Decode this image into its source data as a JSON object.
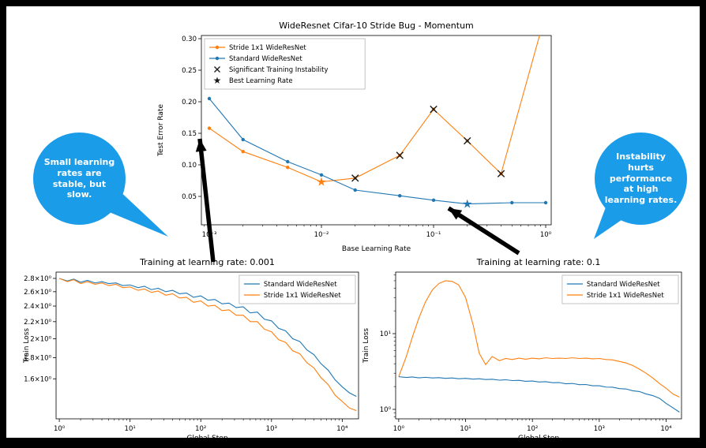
{
  "colors": {
    "series_orange": "#ff7f0e",
    "series_blue": "#1f77b4",
    "marker_black": "#1a1a1a",
    "bubble_blue": "#1b9ce9",
    "arrow_black": "#000000"
  },
  "annotations": {
    "left_bubble": "Small learning rates are stable, but slow.",
    "right_bubble": "Instability hurts performance at high learning rates."
  },
  "chart_data": [
    {
      "id": "lr-sweep",
      "type": "line",
      "title": "WideResnet Cifar-10 Stride Bug - Momentum",
      "xlabel": "Base Learning Rate",
      "ylabel": "Test Error Rate",
      "xscale": "log",
      "yscale": "linear",
      "xlim": [
        0.00085,
        1.12
      ],
      "ylim": [
        0.005,
        0.305
      ],
      "xticks": {
        "values": [
          0.001,
          0.01,
          0.1,
          1
        ],
        "labels": [
          "10⁻³",
          "10⁻²",
          "10⁻¹",
          "10⁰"
        ]
      },
      "yticks": {
        "values": [
          0.05,
          0.1,
          0.15,
          0.2,
          0.25,
          0.3
        ],
        "labels": [
          "0.05",
          "0.10",
          "0.15",
          "0.20",
          "0.25",
          "0.30"
        ]
      },
      "series": [
        {
          "name": "Stride 1x1 WideResNet",
          "color": "#ff7f0e",
          "marker": "dot",
          "x": [
            0.001,
            0.002,
            0.005,
            0.01,
            0.02,
            0.05,
            0.1,
            0.2,
            0.4,
            1.0
          ],
          "y": [
            0.158,
            0.121,
            0.096,
            0.073,
            0.079,
            0.115,
            0.188,
            0.138,
            0.086,
            0.34
          ]
        },
        {
          "name": "Standard WideResNet",
          "color": "#1f77b4",
          "marker": "dot",
          "x": [
            0.001,
            0.002,
            0.005,
            0.01,
            0.02,
            0.05,
            0.1,
            0.2,
            0.5,
            1.0
          ],
          "y": [
            0.205,
            0.14,
            0.105,
            0.084,
            0.06,
            0.051,
            0.044,
            0.038,
            0.04,
            0.04
          ]
        }
      ],
      "markers": [
        {
          "type": "x",
          "label": "Significant Training Instability",
          "color": "#1a1a1a",
          "points": [
            [
              0.02,
              0.079
            ],
            [
              0.05,
              0.115
            ],
            [
              0.1,
              0.188
            ],
            [
              0.2,
              0.138
            ],
            [
              0.4,
              0.086
            ]
          ]
        },
        {
          "type": "star",
          "label": "Best Learning Rate",
          "color": "#ff7f0e",
          "points": [
            [
              0.01,
              0.073
            ]
          ]
        },
        {
          "type": "star",
          "label": "Best Learning Rate",
          "color": "#1f77b4",
          "points": [
            [
              0.2,
              0.038
            ]
          ]
        }
      ],
      "legend": {
        "position": "upper-left",
        "entries": [
          {
            "label": "Stride 1x1 WideResNet",
            "type": "line-dot",
            "color": "#ff7f0e"
          },
          {
            "label": "Standard WideResNet",
            "type": "line-dot",
            "color": "#1f77b4"
          },
          {
            "label": "Significant Training Instability",
            "type": "x",
            "color": "#1a1a1a"
          },
          {
            "label": "Best Learning Rate",
            "type": "star",
            "color": "#1a1a1a"
          }
        ]
      }
    },
    {
      "id": "train-lr-0.001",
      "type": "line",
      "title": "Training at learning rate: 0.001",
      "xlabel": "Global Step",
      "ylabel": "Train Loss",
      "xscale": "log",
      "yscale": "log",
      "xlim": [
        0.9,
        17000
      ],
      "ylim": [
        1.28,
        2.9
      ],
      "xticks": {
        "values": [
          1,
          10,
          100,
          1000,
          10000
        ],
        "labels": [
          "10⁰",
          "10¹",
          "10²",
          "10³",
          "10⁴"
        ]
      },
      "yticks": {
        "values": [
          1.6,
          1.8,
          2.0,
          2.2,
          2.4,
          2.6,
          2.8
        ],
        "labels": [
          "1.6×10⁰",
          "1.8×10⁰",
          "2×10⁰",
          "2.2×10⁰",
          "2.4×10⁰",
          "2.6×10⁰",
          "2.8×10⁰"
        ]
      },
      "yminor": false,
      "series": [
        {
          "name": "Standard WideResNet",
          "color": "#1f77b4",
          "marker": "none",
          "x": [
            1,
            1.3,
            1.6,
            2,
            2.5,
            3.2,
            4,
            5,
            6.3,
            7.9,
            10,
            13,
            16,
            20,
            25,
            32,
            40,
            50,
            63,
            79,
            100,
            126,
            158,
            200,
            251,
            316,
            398,
            501,
            631,
            794,
            1000,
            1259,
            1585,
            1995,
            2512,
            3162,
            3981,
            5012,
            6310,
            7943,
            10000,
            12589,
            15849
          ],
          "y": [
            2.8,
            2.76,
            2.79,
            2.74,
            2.77,
            2.73,
            2.75,
            2.72,
            2.73,
            2.69,
            2.7,
            2.66,
            2.68,
            2.63,
            2.65,
            2.6,
            2.62,
            2.57,
            2.58,
            2.52,
            2.54,
            2.48,
            2.49,
            2.43,
            2.44,
            2.38,
            2.39,
            2.31,
            2.32,
            2.23,
            2.21,
            2.12,
            2.09,
            2.0,
            1.97,
            1.88,
            1.83,
            1.74,
            1.68,
            1.59,
            1.53,
            1.48,
            1.45
          ]
        },
        {
          "name": "Stride 1x1 WideResNet",
          "color": "#ff7f0e",
          "marker": "none",
          "x": [
            1,
            1.3,
            1.6,
            2,
            2.5,
            3.2,
            4,
            5,
            6.3,
            7.9,
            10,
            13,
            16,
            20,
            25,
            32,
            40,
            50,
            63,
            79,
            100,
            126,
            158,
            200,
            251,
            316,
            398,
            501,
            631,
            794,
            1000,
            1259,
            1585,
            1995,
            2512,
            3162,
            3981,
            5012,
            6310,
            7943,
            10000,
            12589,
            15849
          ],
          "y": [
            2.8,
            2.75,
            2.78,
            2.72,
            2.75,
            2.71,
            2.73,
            2.69,
            2.71,
            2.66,
            2.67,
            2.62,
            2.64,
            2.59,
            2.61,
            2.55,
            2.57,
            2.51,
            2.52,
            2.45,
            2.47,
            2.4,
            2.41,
            2.34,
            2.35,
            2.28,
            2.28,
            2.2,
            2.2,
            2.11,
            2.08,
            1.99,
            1.96,
            1.87,
            1.84,
            1.75,
            1.7,
            1.61,
            1.55,
            1.46,
            1.41,
            1.36,
            1.34
          ]
        }
      ],
      "legend": {
        "position": "upper-right",
        "entries": [
          {
            "label": "Standard WideResNet",
            "type": "line",
            "color": "#1f77b4"
          },
          {
            "label": "Stride 1x1 WideResNet",
            "type": "line",
            "color": "#ff7f0e"
          }
        ]
      }
    },
    {
      "id": "train-lr-0.1",
      "type": "line",
      "title": "Training at learning rate: 0.1",
      "xlabel": "Global Step",
      "ylabel": "Train Loss",
      "xscale": "log",
      "yscale": "log",
      "xlim": [
        0.9,
        17000
      ],
      "ylim": [
        0.75,
        65
      ],
      "xticks": {
        "values": [
          1,
          10,
          100,
          1000,
          10000
        ],
        "labels": [
          "10⁰",
          "10¹",
          "10²",
          "10³",
          "10⁴"
        ]
      },
      "yticks": {
        "values": [
          1,
          10
        ],
        "labels": [
          "10⁰",
          "10¹"
        ]
      },
      "yminor": true,
      "series": [
        {
          "name": "Standard WideResNet",
          "color": "#1f77b4",
          "marker": "none",
          "x": [
            1,
            1.3,
            1.6,
            2,
            2.5,
            3.2,
            4,
            5,
            6.3,
            7.9,
            10,
            13,
            16,
            20,
            25,
            32,
            40,
            50,
            63,
            79,
            100,
            126,
            158,
            200,
            251,
            316,
            398,
            501,
            631,
            794,
            1000,
            1259,
            1585,
            1995,
            2512,
            3162,
            3981,
            5012,
            6310,
            7943,
            10000,
            12589,
            15849
          ],
          "y": [
            2.7,
            2.64,
            2.68,
            2.61,
            2.65,
            2.6,
            2.62,
            2.57,
            2.6,
            2.54,
            2.57,
            2.51,
            2.54,
            2.48,
            2.5,
            2.43,
            2.46,
            2.4,
            2.42,
            2.35,
            2.37,
            2.3,
            2.32,
            2.25,
            2.26,
            2.18,
            2.2,
            2.12,
            2.13,
            2.05,
            2.05,
            1.97,
            1.96,
            1.88,
            1.86,
            1.76,
            1.72,
            1.6,
            1.52,
            1.4,
            1.2,
            1.05,
            0.92
          ]
        },
        {
          "name": "Stride 1x1 WideResNet",
          "color": "#ff7f0e",
          "marker": "none",
          "x": [
            1,
            1.3,
            1.6,
            2,
            2.5,
            3.2,
            4,
            5,
            6.3,
            7.9,
            10,
            13,
            16,
            20,
            25,
            32,
            40,
            50,
            63,
            79,
            100,
            126,
            158,
            200,
            251,
            316,
            398,
            501,
            631,
            794,
            1000,
            1259,
            1585,
            1995,
            2512,
            3162,
            3981,
            5012,
            6310,
            7943,
            10000,
            12589,
            15849
          ],
          "y": [
            2.7,
            5.0,
            9.0,
            16,
            26,
            38,
            46,
            50,
            49,
            44,
            30,
            13,
            5.5,
            3.9,
            5.0,
            4.4,
            4.7,
            4.55,
            4.75,
            4.6,
            4.75,
            4.65,
            4.8,
            4.7,
            4.75,
            4.7,
            4.8,
            4.7,
            4.75,
            4.65,
            4.7,
            4.55,
            4.5,
            4.3,
            4.1,
            3.8,
            3.4,
            3.0,
            2.6,
            2.2,
            1.9,
            1.6,
            1.45
          ]
        }
      ],
      "legend": {
        "position": "upper-right",
        "entries": [
          {
            "label": "Standard WideResNet",
            "type": "line",
            "color": "#1f77b4"
          },
          {
            "label": "Stride 1x1 WideResNet",
            "type": "line",
            "color": "#ff7f0e"
          }
        ]
      }
    }
  ]
}
